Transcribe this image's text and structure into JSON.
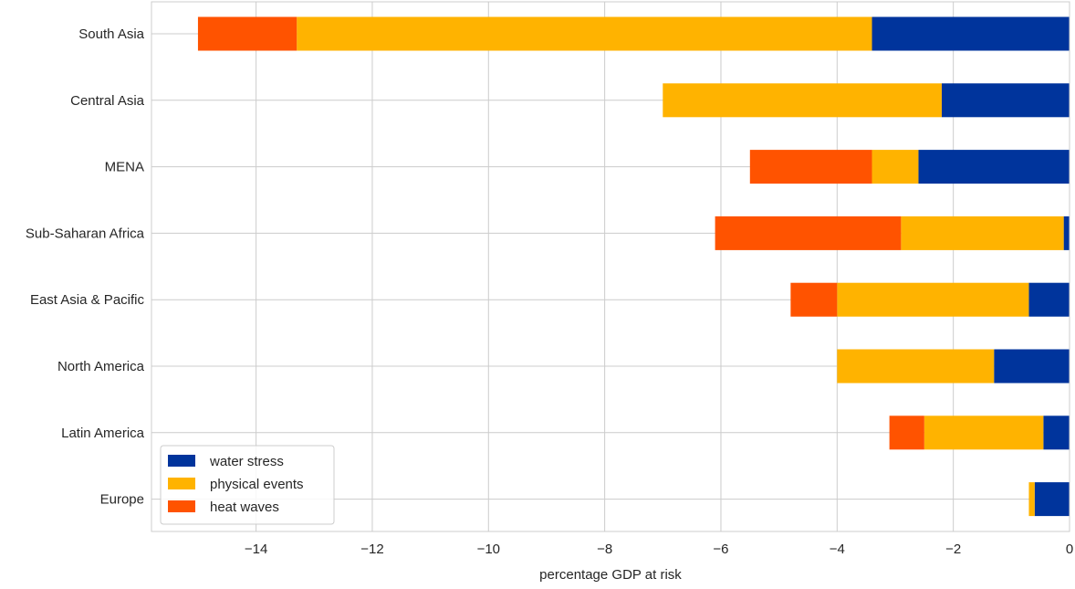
{
  "chart_data": {
    "type": "bar",
    "orientation": "horizontal",
    "stacked": true,
    "title": "",
    "xlabel": "percentage GDP at risk",
    "ylabel": "",
    "xlim": [
      -15.8,
      0
    ],
    "xticks": [
      -14,
      -12,
      -10,
      -8,
      -6,
      -4,
      -2,
      0
    ],
    "xtick_labels": [
      "−14",
      "−12",
      "−10",
      "−8",
      "−6",
      "−4",
      "−2",
      "0"
    ],
    "grid": true,
    "legend_position": "lower-left",
    "categories": [
      "South Asia",
      "Central Asia",
      "MENA",
      "Sub-Saharan Africa",
      "East Asia & Pacific",
      "North America",
      "Latin America",
      "Europe"
    ],
    "series": [
      {
        "name": "water stress",
        "color": "#00349c",
        "values": [
          -3.4,
          -2.2,
          -2.6,
          -0.1,
          -0.7,
          -1.3,
          -0.45,
          -0.6
        ]
      },
      {
        "name": "physical events",
        "color": "#ffb300",
        "values": [
          -9.9,
          -4.8,
          -0.8,
          -2.8,
          -3.3,
          -2.7,
          -2.05,
          -0.1
        ]
      },
      {
        "name": "heat waves",
        "color": "#ff5300",
        "values": [
          -1.7,
          0,
          -2.1,
          -3.2,
          -0.8,
          0,
          -0.6,
          0
        ]
      }
    ]
  }
}
